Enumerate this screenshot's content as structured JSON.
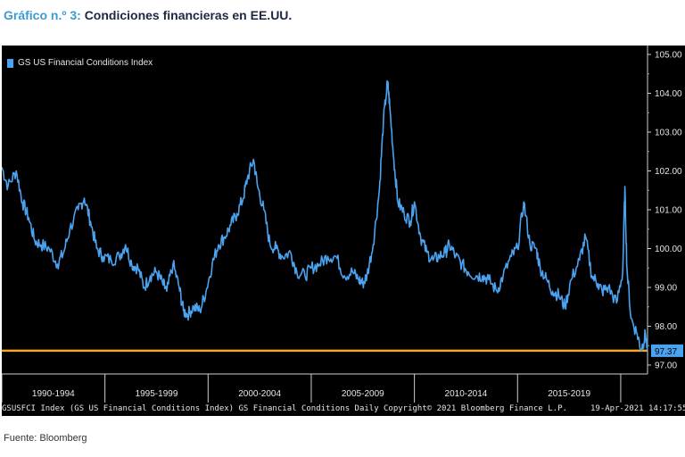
{
  "figure": {
    "title_number": "Gráfico n.º 3:",
    "title_text": "Condiciones financieras en EE.UU.",
    "source": "Fuente: Bloomberg"
  },
  "footer": {
    "left": "GSUSFCI Index (GS US Financial Conditions Index) GS Financial Conditions  Daily",
    "middle": "Copyright© 2021 Bloomberg Finance L.P.",
    "right": "19-Apr-2021 14:17:55"
  },
  "colors": {
    "line": "#4aa3f0",
    "reference": "#f5a623",
    "background": "#000000",
    "text": "#e6e6e6"
  },
  "chart_data": {
    "type": "line",
    "legend": "GS US Financial Conditions Index",
    "legend_position": "top-left",
    "x_range": [
      1990,
      2021.3
    ],
    "y_range": [
      97.0,
      105.0
    ],
    "y_ticks": [
      "105.00",
      "104.00",
      "103.00",
      "102.00",
      "101.00",
      "100.00",
      "99.00",
      "98.00",
      "97.00"
    ],
    "y_tick_values": [
      105,
      104,
      103,
      102,
      101,
      100,
      99,
      98,
      97
    ],
    "x_tick_labels": [
      "1990-1994",
      "1995-1999",
      "2000-2004",
      "2005-2009",
      "2010-2014",
      "2015-2019"
    ],
    "x_tick_centers": [
      1992.5,
      1997.5,
      2002.5,
      2007.5,
      2012.5,
      2017.5
    ],
    "x_dividers": [
      1990,
      1995,
      2000,
      2005,
      2010,
      2015,
      2020
    ],
    "reference_line": 97.37,
    "last_value_label": "97.37",
    "grid": false,
    "series": [
      {
        "name": "GS US Financial Conditions Index",
        "x": [
          1990.0,
          1990.3,
          1990.7,
          1991.0,
          1991.3,
          1991.6,
          1991.9,
          1992.3,
          1992.7,
          1993.0,
          1993.3,
          1993.7,
          1994.0,
          1994.3,
          1994.6,
          1994.9,
          1995.3,
          1995.7,
          1996.0,
          1996.3,
          1996.6,
          1996.9,
          1997.2,
          1997.5,
          1997.8,
          1998.0,
          1998.3,
          1998.6,
          1998.8,
          1999.0,
          1999.3,
          1999.6,
          1999.9,
          2000.2,
          2000.5,
          2000.8,
          2001.1,
          2001.4,
          2001.7,
          2001.9,
          2002.2,
          2002.4,
          2002.7,
          2003.0,
          2003.3,
          2003.6,
          2004.0,
          2004.3,
          2004.7,
          2005.0,
          2005.4,
          2005.8,
          2006.2,
          2006.6,
          2007.0,
          2007.3,
          2007.5,
          2007.7,
          2008.0,
          2008.3,
          2008.5,
          2008.7,
          2008.8,
          2009.0,
          2009.2,
          2009.5,
          2009.8,
          2010.0,
          2010.3,
          2010.6,
          2010.9,
          2011.2,
          2011.5,
          2011.7,
          2012.0,
          2012.3,
          2012.6,
          2013.0,
          2013.3,
          2013.6,
          2014.0,
          2014.3,
          2014.7,
          2015.0,
          2015.3,
          2015.6,
          2015.9,
          2016.1,
          2016.4,
          2016.7,
          2017.0,
          2017.3,
          2017.6,
          2018.0,
          2018.3,
          2018.6,
          2018.9,
          2019.1,
          2019.4,
          2019.8,
          2020.1,
          2020.2,
          2020.3,
          2020.5,
          2020.8,
          2021.0,
          2021.2,
          2021.3
        ],
        "y": [
          102.1,
          101.6,
          102.0,
          101.2,
          100.8,
          100.2,
          100.1,
          100.0,
          99.6,
          99.9,
          100.5,
          101.0,
          101.3,
          100.7,
          100.0,
          99.8,
          99.7,
          99.8,
          100.1,
          99.6,
          99.5,
          99.0,
          99.3,
          99.4,
          99.1,
          98.9,
          99.6,
          99.0,
          98.4,
          98.3,
          98.5,
          98.4,
          98.9,
          99.6,
          100.1,
          100.3,
          100.6,
          100.9,
          101.3,
          101.8,
          102.3,
          101.6,
          101.0,
          100.1,
          100.0,
          99.8,
          99.9,
          99.4,
          99.3,
          99.5,
          99.6,
          99.8,
          99.8,
          99.3,
          99.4,
          99.2,
          99.1,
          99.3,
          100.1,
          101.5,
          103.3,
          104.3,
          103.7,
          102.3,
          101.2,
          100.9,
          100.7,
          101.2,
          100.3,
          99.9,
          99.7,
          99.8,
          99.9,
          100.1,
          99.8,
          99.6,
          99.4,
          99.3,
          99.3,
          99.2,
          98.9,
          99.3,
          99.8,
          100.0,
          101.2,
          100.1,
          100.0,
          99.5,
          99.2,
          98.9,
          98.8,
          98.5,
          99.2,
          99.7,
          100.3,
          99.3,
          99.1,
          98.9,
          99.0,
          98.6,
          99.4,
          101.6,
          99.5,
          98.2,
          97.8,
          97.4,
          97.8,
          97.37
        ]
      }
    ]
  }
}
